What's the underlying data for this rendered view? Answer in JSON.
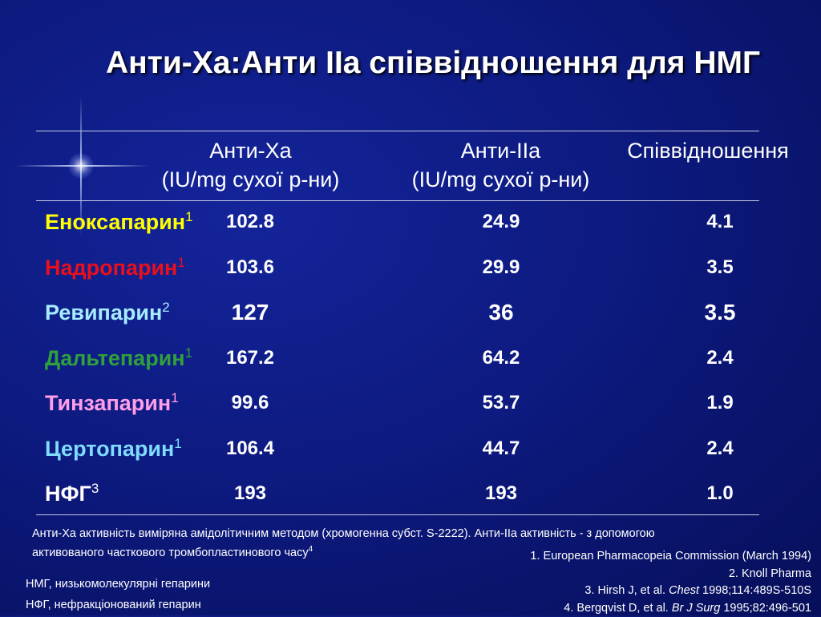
{
  "title": "Анти-Xa:Анти IIa співвідношення для НМГ",
  "columns": [
    {
      "name": "Анти-Xa",
      "unit": "(IU/mg сухої р-ни)"
    },
    {
      "name": "Анти-IIa",
      "unit": "(IU/mg сухої р-ни)"
    },
    {
      "name": "Співвідношення",
      "unit": ""
    }
  ],
  "rows": [
    {
      "name": "Еноксапарин",
      "sup": "1",
      "color": "#ffff00",
      "anti_xa": "102.8",
      "anti_iia": "24.9",
      "ratio": "4.1"
    },
    {
      "name": "Надропарин",
      "sup": "1",
      "color": "#e8101a",
      "anti_xa": "103.6",
      "anti_iia": "29.9",
      "ratio": "3.5"
    },
    {
      "name": "Ревипарин",
      "sup": "2",
      "color": "#a6ecff",
      "anti_xa": "127",
      "anti_iia": "36",
      "ratio": "3.5"
    },
    {
      "name": "Дальтепарин",
      "sup": "1",
      "color": "#2fa03a",
      "anti_xa": "167.2",
      "anti_iia": "64.2",
      "ratio": "2.4"
    },
    {
      "name": "Тинзапарин",
      "sup": "1",
      "color": "#ff9ee8",
      "anti_xa": "99.6",
      "anti_iia": "53.7",
      "ratio": "1.9"
    },
    {
      "name": "Цертопарин",
      "sup": "1",
      "color": "#7fdcff",
      "anti_xa": "106.4",
      "anti_iia": "44.7",
      "ratio": "2.4"
    },
    {
      "name": "НФГ",
      "sup": "3",
      "color": "#ffffff",
      "anti_xa": "193",
      "anti_iia": "193",
      "ratio": "1.0"
    }
  ],
  "note": {
    "line1": "Анти-Xa активність виміряна амідолітичним методом (хромогенна субст. S-2222). Анти-IIa активність - з допомогою",
    "line2": "активованого часткового тромбопластинового часу",
    "line2_sup": "4"
  },
  "references": {
    "r1": "1. European Pharmacopeia Commission (March 1994)",
    "r2": "2. Knoll Pharma",
    "r3_pre": "3. Hirsh J, et al. ",
    "r3_journal": "Chest",
    "r3_post": " 1998;114:489S-510S",
    "r4_pre": "4. Bergqvist D, et al. ",
    "r4_journal": "Br J Surg",
    "r4_post": " 1995;82:496-501"
  },
  "abbreviations": [
    "НМГ, низькомолекулярні гепарини",
    "НФГ, нефракціонований гепарин"
  ],
  "chart_data": {
    "type": "table",
    "title": "Анти-Xa:Анти IIa співвідношення для НМГ",
    "columns": [
      "Анти-Xa (IU/mg сухої р-ни)",
      "Анти-IIa (IU/mg сухої р-ни)",
      "Співвідношення"
    ],
    "categories": [
      "Еноксапарин",
      "Надропарин",
      "Ревипарин",
      "Дальтепарин",
      "Тинзапарин",
      "Цертопарин",
      "НФГ"
    ],
    "series": [
      {
        "name": "Анти-Xa",
        "values": [
          102.8,
          103.6,
          127,
          167.2,
          99.6,
          106.4,
          193
        ]
      },
      {
        "name": "Анти-IIa",
        "values": [
          24.9,
          29.9,
          36,
          64.2,
          53.7,
          44.7,
          193
        ]
      },
      {
        "name": "Співвідношення",
        "values": [
          4.1,
          3.5,
          3.5,
          2.4,
          1.9,
          2.4,
          1.0
        ]
      }
    ]
  }
}
